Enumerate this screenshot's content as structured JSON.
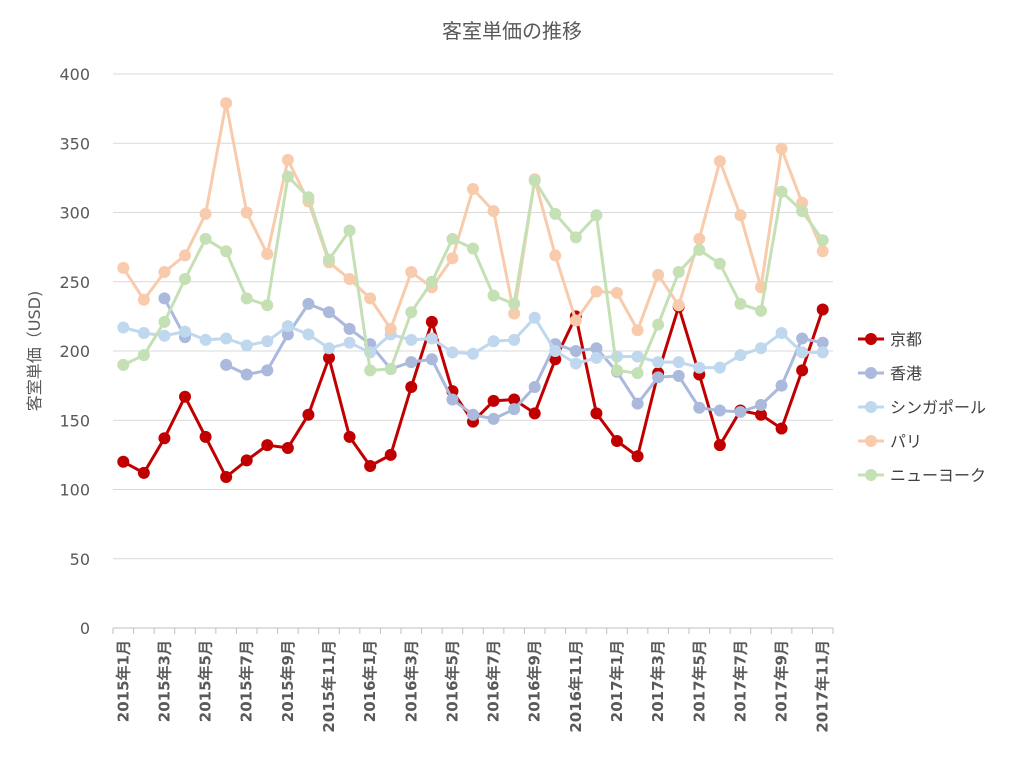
{
  "chart_data": {
    "type": "line",
    "title": "客室単価の推移",
    "xlabel": "",
    "ylabel": "客室単価（USD)",
    "ylim": [
      0,
      400
    ],
    "yticks": [
      0,
      50,
      100,
      150,
      200,
      250,
      300,
      350,
      400
    ],
    "grid": true,
    "legend_position": "right",
    "x": [
      "2015年1月",
      "2015年2月",
      "2015年3月",
      "2015年4月",
      "2015年5月",
      "2015年6月",
      "2015年7月",
      "2015年8月",
      "2015年9月",
      "2015年10月",
      "2015年11月",
      "2015年12月",
      "2016年1月",
      "2016年2月",
      "2016年3月",
      "2016年4月",
      "2016年5月",
      "2016年6月",
      "2016年7月",
      "2016年8月",
      "2016年9月",
      "2016年10月",
      "2016年11月",
      "2016年12月",
      "2017年1月",
      "2017年2月",
      "2017年3月",
      "2017年4月",
      "2017年5月",
      "2017年6月",
      "2017年7月",
      "2017年8月",
      "2017年9月",
      "2017年10月",
      "2017年11月"
    ],
    "x_tick_labels": [
      "2015年1月",
      "2015年3月",
      "2015年5月",
      "2015年7月",
      "2015年9月",
      "2015年11月",
      "2016年1月",
      "2016年3月",
      "2016年5月",
      "2016年7月",
      "2016年9月",
      "2016年11月",
      "2017年1月",
      "2017年3月",
      "2017年5月",
      "2017年7月",
      "2017年9月",
      "2017年11月"
    ],
    "series": [
      {
        "name": "京都",
        "color": "#c00000",
        "values": [
          120,
          112,
          137,
          167,
          138,
          109,
          121,
          132,
          130,
          154,
          195,
          138,
          117,
          125,
          174,
          221,
          171,
          149,
          164,
          165,
          155,
          194,
          225,
          155,
          135,
          124,
          184,
          232,
          183,
          132,
          157,
          154,
          144,
          186,
          230
        ]
      },
      {
        "name": "香港",
        "color": "#aab9dc",
        "values": [
          null,
          null,
          238,
          210,
          null,
          190,
          183,
          186,
          212,
          234,
          228,
          216,
          205,
          187,
          192,
          194,
          165,
          154,
          151,
          158,
          174,
          205,
          200,
          202,
          185,
          162,
          181,
          182,
          159,
          157,
          156,
          161,
          175,
          209,
          206
        ]
      },
      {
        "name": "シンガポール",
        "color": "#bfd8ee",
        "values": [
          217,
          213,
          211,
          214,
          208,
          209,
          204,
          207,
          218,
          212,
          202,
          206,
          199,
          212,
          208,
          209,
          199,
          198,
          207,
          208,
          224,
          200,
          191,
          195,
          196,
          196,
          192,
          192,
          188,
          188,
          197,
          202,
          213,
          199,
          199
        ]
      },
      {
        "name": "パリ",
        "color": "#f8cbad",
        "values": [
          260,
          237,
          257,
          269,
          299,
          379,
          300,
          270,
          338,
          308,
          264,
          252,
          238,
          216,
          257,
          246,
          267,
          317,
          301,
          227,
          324,
          269,
          222,
          243,
          242,
          215,
          255,
          233,
          281,
          337,
          298,
          246,
          346,
          307,
          272
        ]
      },
      {
        "name": "ニューヨーク",
        "color": "#c5e0b4",
        "values": [
          190,
          197,
          221,
          252,
          281,
          272,
          238,
          233,
          326,
          311,
          266,
          287,
          186,
          187,
          228,
          250,
          281,
          274,
          240,
          234,
          323,
          299,
          282,
          298,
          186,
          184,
          219,
          257,
          273,
          263,
          234,
          229,
          315,
          301,
          280
        ]
      }
    ]
  }
}
